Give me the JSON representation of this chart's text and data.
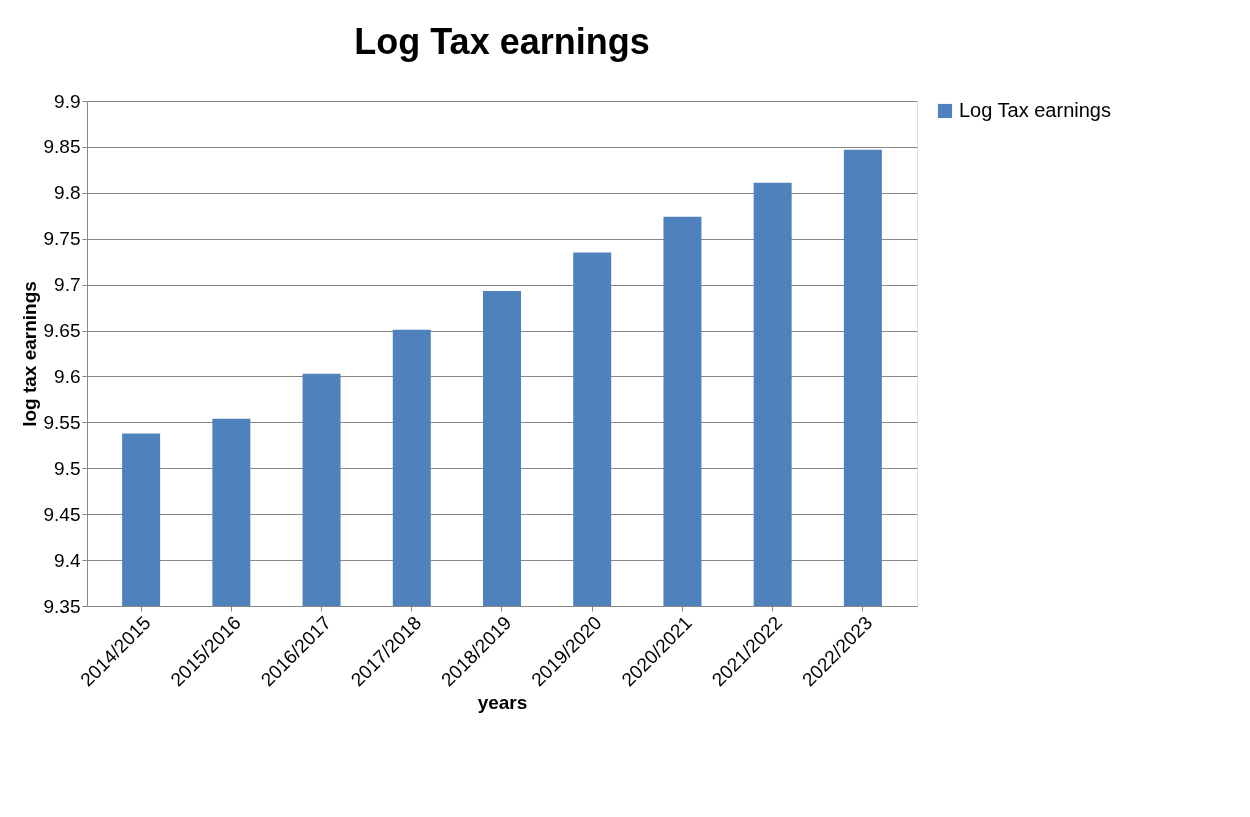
{
  "chart_data": {
    "type": "bar",
    "title": "Log Tax earnings",
    "xlabel": "years",
    "ylabel": "log tax earnings",
    "categories": [
      "2014/2015",
      "2015/2016",
      "2016/2017",
      "2017/2018",
      "2018/2019",
      "2019/2020",
      "2020/2021",
      "2021/2022",
      "2022/2023"
    ],
    "series": [
      {
        "name": "Log Tax earnings",
        "color": "#4f81bd",
        "values": [
          9.538,
          9.554,
          9.603,
          9.651,
          9.693,
          9.735,
          9.774,
          9.811,
          9.847
        ]
      }
    ],
    "ylim": [
      9.35,
      9.9
    ],
    "yticks": [
      9.35,
      9.4,
      9.45,
      9.5,
      9.55,
      9.6,
      9.65,
      9.7,
      9.75,
      9.8,
      9.85,
      9.9
    ],
    "grid": "y",
    "legend": "right"
  }
}
